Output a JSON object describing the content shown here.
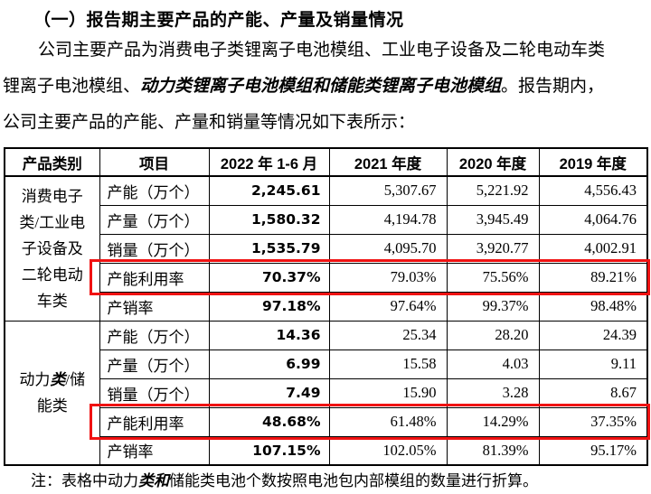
{
  "heading": "（一）报告期主要产品的产能、产量及销量情况",
  "paragraph_lines": [
    {
      "indent": true,
      "segments": [
        {
          "t": "公司主要产品为消费电子类锂离子电池模组、工业电子设备及二轮电动车类"
        }
      ]
    },
    {
      "indent": false,
      "segments": [
        {
          "t": "锂离子电池模组、"
        },
        {
          "t": "动力类锂离子电池模组和储能类锂离子电池模组",
          "b": true
        },
        {
          "t": "。报告期内，"
        }
      ]
    },
    {
      "indent": false,
      "segments": [
        {
          "t": "公司主要产品的产能、产量和销量等情况如下表所示："
        }
      ]
    }
  ],
  "table": {
    "headers": [
      "产品类别",
      "项目",
      "2022 年 1-6 月",
      "2021 年度",
      "2020 年度",
      "2019 年度"
    ],
    "groups": [
      {
        "category_segments": [
          {
            "t": "消费电子类/工业电子设备及二轮电动车类"
          }
        ],
        "rows": [
          {
            "label": "产能（万个）",
            "values": [
              "2,245.61",
              "5,307.67",
              "5,221.92",
              "4,556.43"
            ],
            "highlight": false
          },
          {
            "label": "产量（万个）",
            "values": [
              "1,580.32",
              "4,194.78",
              "3,945.49",
              "4,064.76"
            ],
            "highlight": false
          },
          {
            "label": "销量（万个）",
            "values": [
              "1,535.79",
              "4,095.70",
              "3,920.77",
              "4,002.91"
            ],
            "highlight": false
          },
          {
            "label": "产能利用率",
            "values": [
              "70.37%",
              "79.03%",
              "75.56%",
              "89.21%"
            ],
            "highlight": true
          },
          {
            "label": "产销率",
            "values": [
              "97.18%",
              "97.64%",
              "99.37%",
              "98.48%"
            ],
            "highlight": false
          }
        ]
      },
      {
        "category_segments": [
          {
            "t": "动力"
          },
          {
            "t": "类",
            "b": true
          },
          {
            "t": "/储能类"
          }
        ],
        "rows": [
          {
            "label": "产能（万个）",
            "values": [
              "14.36",
              "25.34",
              "28.20",
              "24.39"
            ],
            "highlight": false
          },
          {
            "label": "产量（万个）",
            "values": [
              "6.99",
              "15.58",
              "4.03",
              "9.11"
            ],
            "highlight": false
          },
          {
            "label": "销量（万个）",
            "values": [
              "7.49",
              "15.90",
              "3.28",
              "8.67"
            ],
            "highlight": false
          },
          {
            "label": "产能利用率",
            "values": [
              "48.68%",
              "61.48%",
              "14.29%",
              "37.35%"
            ],
            "highlight": true
          },
          {
            "label": "产销率",
            "values": [
              "107.15%",
              "102.05%",
              "81.39%",
              "95.17%"
            ],
            "highlight": false
          }
        ]
      }
    ]
  },
  "note_segments": [
    {
      "t": "注：表格中动力"
    },
    {
      "t": "类和",
      "b": true
    },
    {
      "t": "储能类电池个数按照电池包内部模组的数量进行折算。"
    }
  ],
  "colors": {
    "text": "#000000",
    "table_border": "#000000",
    "highlight_box": "#f01212",
    "background": "#ffffff"
  }
}
